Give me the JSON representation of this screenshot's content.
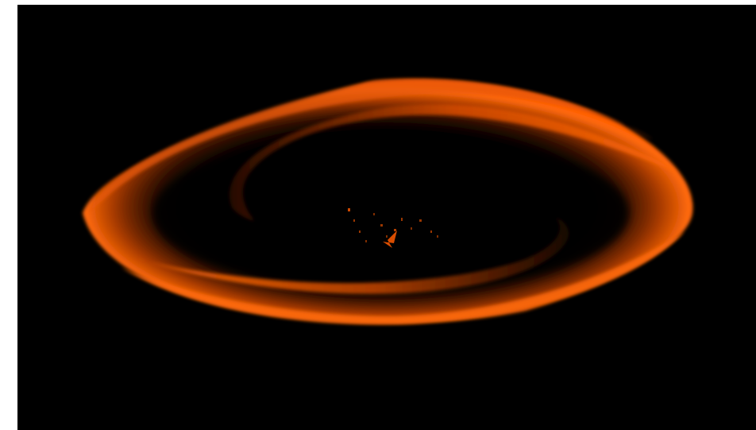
{
  "scene": {
    "subject": "glowing-orange-spiral-disk",
    "colors": {
      "background": "#000000",
      "border": "#ffffff",
      "glow_bright": "#ff6a0a",
      "glow_mid": "#d14a00",
      "glow_dark": "#3a1200",
      "speck": "#ff5a00"
    }
  }
}
